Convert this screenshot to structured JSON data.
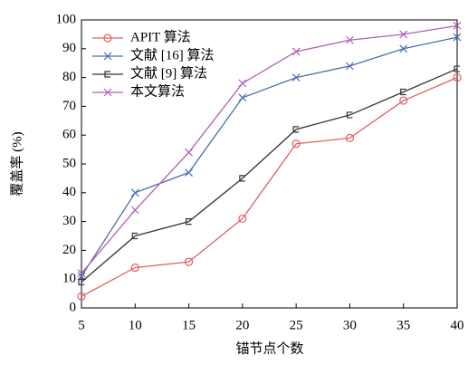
{
  "chart_data": {
    "type": "line",
    "x_label": "锚节点个数",
    "y_label": "覆盖率 (%)",
    "x": [
      5,
      10,
      15,
      20,
      25,
      30,
      35,
      40
    ],
    "xlim": [
      5,
      40
    ],
    "xticks": [
      5,
      10,
      15,
      20,
      25,
      30,
      35,
      40
    ],
    "ylim": [
      0,
      100
    ],
    "yticks": [
      0,
      10,
      20,
      30,
      40,
      50,
      60,
      70,
      80,
      90,
      100
    ],
    "legend": "upper left",
    "series": [
      {
        "name": "APIT 算法",
        "color": "#e06060",
        "marker": "circle",
        "values": [
          4,
          14,
          16,
          31,
          57,
          59,
          72,
          80
        ]
      },
      {
        "name": "文献 [16] 算法",
        "color": "#4a6fb0",
        "marker": "x",
        "values": [
          11,
          40,
          47,
          73,
          80,
          84,
          90,
          94
        ]
      },
      {
        "name": "文献 [9] 算法",
        "color": "#333333",
        "marker": "square",
        "values": [
          9,
          25,
          30,
          45,
          62,
          67,
          75,
          83
        ]
      },
      {
        "name": "本文算法",
        "color": "#b060b0",
        "marker": "x",
        "values": [
          12,
          34,
          54,
          78,
          89,
          93,
          95,
          98
        ]
      }
    ]
  }
}
